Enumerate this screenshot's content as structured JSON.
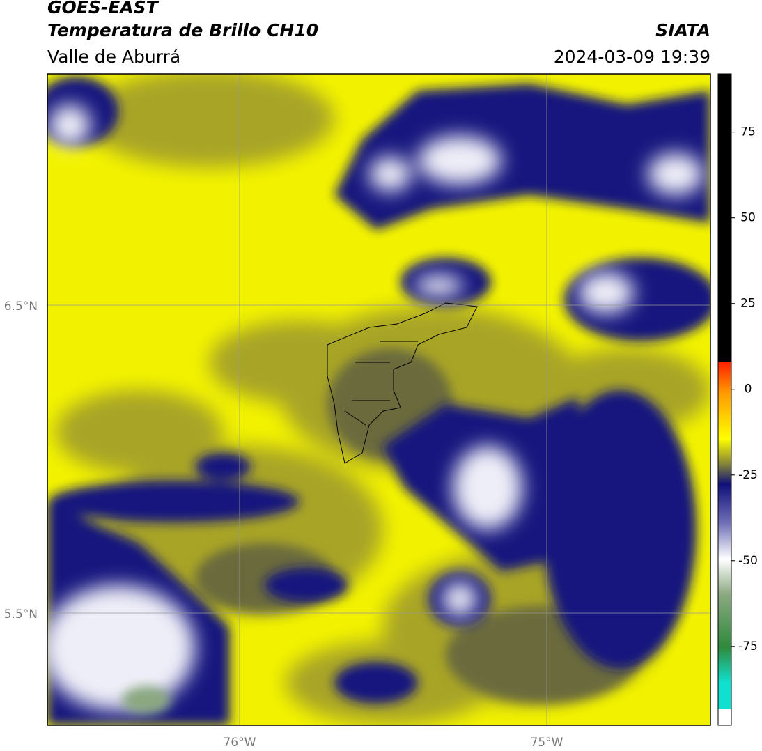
{
  "header": {
    "title": "GOES-EAST",
    "subtitle": "Temperatura de Brillo CH10",
    "region": "Valle de Aburrá",
    "source": "SIATA",
    "datetime": "2024-03-09 19:39"
  },
  "map": {
    "lat_labels": [
      "6.5°N",
      "5.5°N"
    ],
    "lon_labels": [
      "76°W",
      "75°W"
    ]
  },
  "colorbar": {
    "lim": [
      -98,
      92
    ],
    "ticks": [
      75,
      50,
      25,
      0,
      -25,
      -50,
      -75
    ]
  }
}
